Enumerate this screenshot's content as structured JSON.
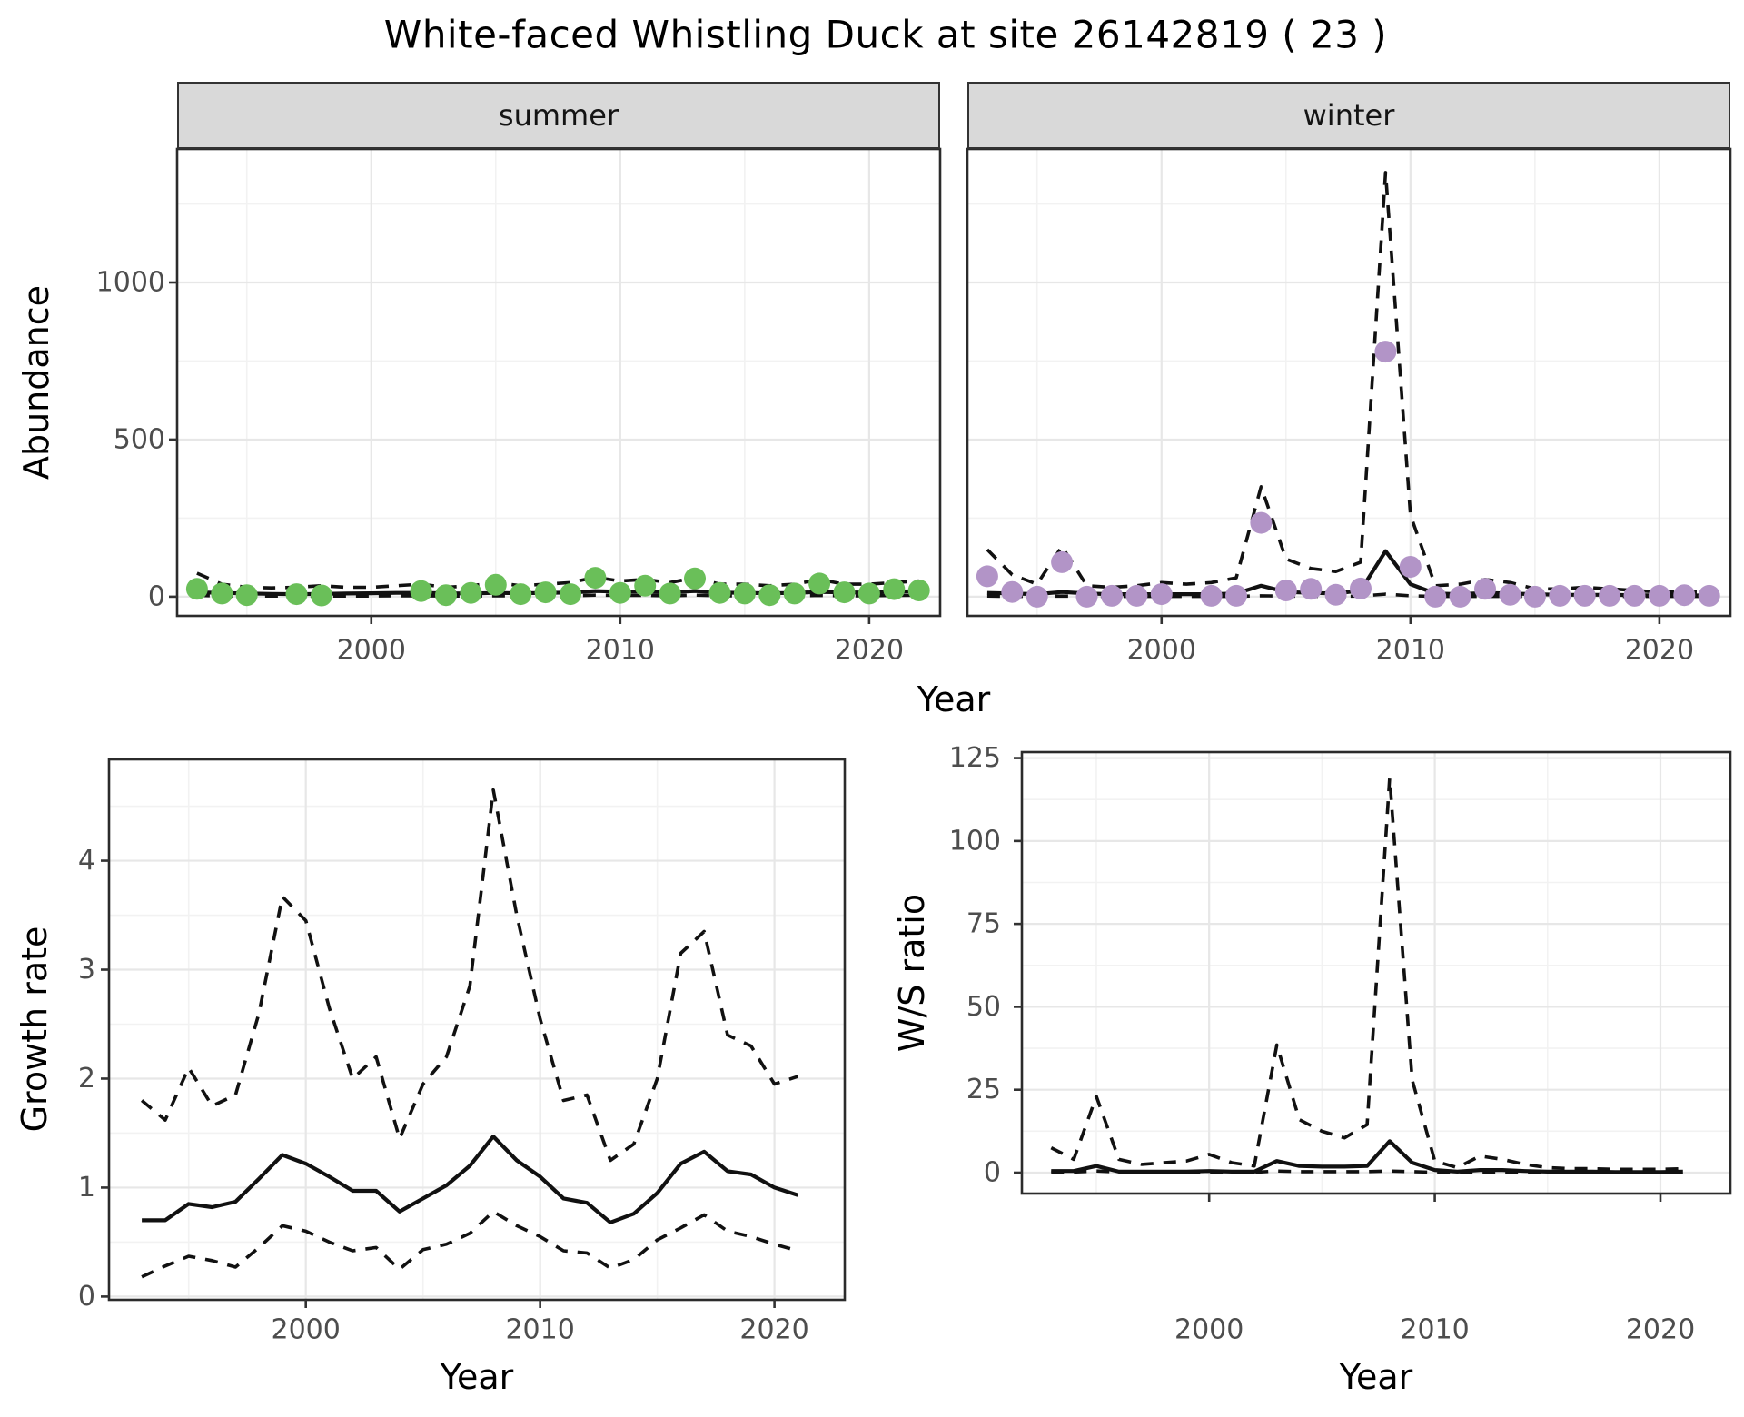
{
  "title": "White-faced Whistling Duck at site 26142819 ( 23 )",
  "axis_titles": {
    "abundance": "Abundance",
    "year_top": "Year",
    "growth_rate": "Growth rate",
    "year_bottom_left": "Year",
    "ws_ratio": "W/S ratio",
    "year_bottom_right": "Year"
  },
  "colors": {
    "summer_points": "#6ABF59",
    "winter_points": "#B294C7",
    "line": "#111111",
    "strip_fill": "#D9D9D9",
    "strip_border": "#333333",
    "panel_border": "#2B2B2B",
    "grid_major": "#E7E7E7",
    "grid_minor": "#F2F2F2",
    "tick_mark": "#333333",
    "tick_label": "#4D4D4D"
  },
  "chart_data": [
    {
      "id": "abundance-summer",
      "type": "scatter",
      "facet_label": "summer",
      "xlabel": "Year",
      "ylabel": "Abundance",
      "xlim": [
        1992.2,
        2022.85
      ],
      "ylim": [
        -61,
        1425
      ],
      "xticks": [
        2000,
        2010,
        2020
      ],
      "xticks_minor": [
        1995,
        2005,
        2015
      ],
      "yticks": [
        0,
        500,
        1000
      ],
      "yticks_minor": [
        250,
        750,
        1250
      ],
      "point_color": "#6ABF59",
      "points": {
        "years": [
          1993,
          1994,
          1995,
          1997,
          1998,
          2002,
          2003,
          2004,
          2005,
          2006,
          2007,
          2008,
          2009,
          2010,
          2011,
          2012,
          2013,
          2014,
          2015,
          2016,
          2017,
          2018,
          2019,
          2020,
          2021,
          2022
        ],
        "values": [
          25,
          10,
          5,
          8,
          4,
          18,
          5,
          12,
          38,
          8,
          14,
          8,
          60,
          12,
          35,
          10,
          58,
          12,
          10,
          5,
          10,
          42,
          14,
          10,
          24,
          20
        ]
      },
      "fit": {
        "years": [
          1993,
          1994,
          1995,
          1996,
          1997,
          1998,
          1999,
          2000,
          2001,
          2002,
          2003,
          2004,
          2005,
          2006,
          2007,
          2008,
          2009,
          2010,
          2011,
          2012,
          2013,
          2014,
          2015,
          2016,
          2017,
          2018,
          2019,
          2020,
          2021,
          2022
        ],
        "values": [
          14,
          12,
          10,
          9,
          8,
          9,
          10,
          11,
          12,
          12,
          11,
          10,
          12,
          11,
          12,
          13,
          18,
          16,
          16,
          14,
          18,
          13,
          12,
          11,
          12,
          15,
          14,
          13,
          16,
          18
        ]
      },
      "upper": {
        "years": [
          1993,
          1994,
          1995,
          1996,
          1997,
          1998,
          1999,
          2000,
          2001,
          2002,
          2003,
          2004,
          2005,
          2006,
          2007,
          2008,
          2009,
          2010,
          2011,
          2012,
          2013,
          2014,
          2015,
          2016,
          2017,
          2018,
          2019,
          2020,
          2021,
          2022
        ],
        "values": [
          75,
          40,
          30,
          28,
          30,
          35,
          30,
          30,
          35,
          40,
          30,
          35,
          45,
          35,
          40,
          45,
          62,
          50,
          55,
          45,
          60,
          40,
          40,
          35,
          40,
          55,
          40,
          40,
          45,
          50
        ]
      },
      "lower": {
        "years": [
          1993,
          1994,
          1995,
          1996,
          1997,
          1998,
          1999,
          2000,
          2001,
          2002,
          2003,
          2004,
          2005,
          2006,
          2007,
          2008,
          2009,
          2010,
          2011,
          2012,
          2013,
          2014,
          2015,
          2016,
          2017,
          2018,
          2019,
          2020,
          2021,
          2022
        ],
        "values": [
          4,
          2,
          2,
          2,
          2,
          2,
          2,
          2,
          3,
          3,
          2,
          2,
          3,
          3,
          3,
          3,
          5,
          4,
          4,
          3,
          5,
          3,
          3,
          2,
          3,
          4,
          3,
          3,
          4,
          5
        ]
      }
    },
    {
      "id": "abundance-winter",
      "type": "scatter",
      "facet_label": "winter",
      "xlabel": "Year",
      "ylabel": "Abundance",
      "xlim": [
        1992.2,
        2022.85
      ],
      "ylim": [
        -61,
        1425
      ],
      "xticks": [
        2000,
        2010,
        2020
      ],
      "xticks_minor": [
        1995,
        2005,
        2015
      ],
      "yticks": [
        0,
        500,
        1000
      ],
      "yticks_minor": [
        250,
        750,
        1250
      ],
      "point_color": "#B294C7",
      "points": {
        "years": [
          1993,
          1994,
          1995,
          1996,
          1997,
          1998,
          1999,
          2000,
          2002,
          2003,
          2004,
          2005,
          2006,
          2007,
          2008,
          2009,
          2010,
          2011,
          2012,
          2013,
          2014,
          2015,
          2016,
          2017,
          2018,
          2019,
          2020,
          2021,
          2022
        ],
        "values": [
          65,
          15,
          0,
          110,
          0,
          3,
          3,
          8,
          3,
          3,
          235,
          20,
          25,
          6,
          26,
          780,
          95,
          0,
          0,
          25,
          6,
          0,
          3,
          3,
          3,
          3,
          3,
          5,
          3
        ]
      },
      "fit": {
        "years": [
          1993,
          1994,
          1995,
          1996,
          1997,
          1998,
          1999,
          2000,
          2001,
          2002,
          2003,
          2004,
          2005,
          2006,
          2007,
          2008,
          2009,
          2010,
          2011,
          2012,
          2013,
          2014,
          2015,
          2016,
          2017,
          2018,
          2019,
          2020,
          2021,
          2022
        ],
        "values": [
          12,
          10,
          8,
          15,
          10,
          8,
          8,
          8,
          8,
          8,
          10,
          35,
          15,
          12,
          10,
          20,
          145,
          40,
          10,
          8,
          12,
          10,
          8,
          6,
          6,
          6,
          5,
          4,
          4,
          4
        ]
      },
      "upper": {
        "years": [
          1993,
          1994,
          1995,
          1996,
          1997,
          1998,
          1999,
          2000,
          2001,
          2002,
          2003,
          2004,
          2005,
          2006,
          2007,
          2008,
          2009,
          2010,
          2011,
          2012,
          2013,
          2014,
          2015,
          2016,
          2017,
          2018,
          2019,
          2020,
          2021,
          2022
        ],
        "values": [
          150,
          70,
          40,
          160,
          35,
          30,
          35,
          45,
          40,
          45,
          60,
          350,
          120,
          90,
          80,
          110,
          1350,
          260,
          35,
          40,
          55,
          45,
          25,
          25,
          30,
          25,
          20,
          15,
          15,
          15
        ]
      },
      "lower": {
        "years": [
          1993,
          1994,
          1995,
          1996,
          1997,
          1998,
          1999,
          2000,
          2001,
          2002,
          2003,
          2004,
          2005,
          2006,
          2007,
          2008,
          2009,
          2010,
          2011,
          2012,
          2013,
          2014,
          2015,
          2016,
          2017,
          2018,
          2019,
          2020,
          2021,
          2022
        ],
        "values": [
          2,
          1,
          1,
          2,
          1,
          1,
          1,
          1,
          1,
          1,
          1,
          3,
          2,
          1,
          1,
          2,
          8,
          3,
          1,
          1,
          1,
          1,
          1,
          1,
          1,
          1,
          1,
          1,
          1,
          1
        ]
      }
    },
    {
      "id": "growth-rate",
      "type": "line",
      "facet_label": "",
      "xlabel": "Year",
      "ylabel": "Growth rate",
      "xlim": [
        1991.6,
        2023.0
      ],
      "ylim": [
        -0.03,
        4.93
      ],
      "xticks": [
        2000,
        2010,
        2020
      ],
      "xticks_minor": [
        1995,
        2005,
        2015
      ],
      "yticks": [
        0,
        1,
        2,
        3,
        4
      ],
      "yticks_minor": [
        0.5,
        1.5,
        2.5,
        3.5,
        4.5
      ],
      "point_color": null,
      "points": {
        "years": [],
        "values": []
      },
      "fit": {
        "years": [
          1993,
          1994,
          1995,
          1996,
          1997,
          1998,
          1999,
          2000,
          2001,
          2002,
          2003,
          2004,
          2005,
          2006,
          2007,
          2008,
          2009,
          2010,
          2011,
          2012,
          2013,
          2014,
          2015,
          2016,
          2017,
          2018,
          2019,
          2020,
          2021
        ],
        "values": [
          0.7,
          0.7,
          0.85,
          0.82,
          0.87,
          1.08,
          1.3,
          1.22,
          1.1,
          0.97,
          0.97,
          0.78,
          0.9,
          1.02,
          1.2,
          1.47,
          1.25,
          1.1,
          0.9,
          0.86,
          0.68,
          0.76,
          0.95,
          1.22,
          1.33,
          1.15,
          1.12,
          1.0,
          0.93
        ]
      },
      "upper": {
        "years": [
          1993,
          1994,
          1995,
          1996,
          1997,
          1998,
          1999,
          2000,
          2001,
          2002,
          2003,
          2004,
          2005,
          2006,
          2007,
          2008,
          2009,
          2010,
          2011,
          2012,
          2013,
          2014,
          2015,
          2016,
          2017,
          2018,
          2019,
          2020,
          2021
        ],
        "values": [
          1.8,
          1.62,
          2.1,
          1.75,
          1.85,
          2.6,
          3.67,
          3.45,
          2.65,
          2.0,
          2.2,
          1.45,
          1.95,
          2.2,
          2.85,
          4.65,
          3.5,
          2.55,
          1.8,
          1.85,
          1.25,
          1.4,
          2.0,
          3.15,
          3.35,
          2.4,
          2.3,
          1.95,
          2.02
        ]
      },
      "lower": {
        "years": [
          1993,
          1994,
          1995,
          1996,
          1997,
          1998,
          1999,
          2000,
          2001,
          2002,
          2003,
          2004,
          2005,
          2006,
          2007,
          2008,
          2009,
          2010,
          2011,
          2012,
          2013,
          2014,
          2015,
          2016,
          2017,
          2018,
          2019,
          2020,
          2021
        ],
        "values": [
          0.18,
          0.28,
          0.37,
          0.33,
          0.27,
          0.45,
          0.65,
          0.6,
          0.5,
          0.42,
          0.45,
          0.25,
          0.43,
          0.48,
          0.58,
          0.78,
          0.65,
          0.55,
          0.42,
          0.4,
          0.26,
          0.34,
          0.52,
          0.63,
          0.75,
          0.6,
          0.55,
          0.48,
          0.42
        ]
      }
    },
    {
      "id": "ws-ratio",
      "type": "line",
      "facet_label": "",
      "xlabel": "Year",
      "ylabel": "W/S ratio",
      "xlim": [
        1991.7,
        2023.1
      ],
      "ylim": [
        -6.3,
        126.8
      ],
      "xticks": [
        2000,
        2010,
        2020
      ],
      "xticks_minor": [
        1995,
        2005,
        2015
      ],
      "yticks": [
        0,
        25,
        50,
        75,
        100,
        125
      ],
      "yticks_minor": [
        12.5,
        37.5,
        62.5,
        87.5,
        112.5
      ],
      "point_color": null,
      "points": {
        "years": [],
        "values": []
      },
      "fit": {
        "years": [
          1993,
          1994,
          1995,
          1996,
          1997,
          1998,
          1999,
          2000,
          2001,
          2002,
          2003,
          2004,
          2005,
          2006,
          2007,
          2008,
          2009,
          2010,
          2011,
          2012,
          2013,
          2014,
          2015,
          2016,
          2017,
          2018,
          2019,
          2020,
          2021
        ],
        "values": [
          0.5,
          0.5,
          2.0,
          0.3,
          0.3,
          0.3,
          0.3,
          0.5,
          0.3,
          0.3,
          3.5,
          2.0,
          1.8,
          1.8,
          2.0,
          9.5,
          3.0,
          0.8,
          0.3,
          0.8,
          0.8,
          0.5,
          0.3,
          0.3,
          0.3,
          0.2,
          0.2,
          0.2,
          0.3
        ]
      },
      "upper": {
        "years": [
          1993,
          1994,
          1995,
          1996,
          1997,
          1998,
          1999,
          2000,
          2001,
          2002,
          2003,
          2004,
          2005,
          2006,
          2007,
          2008,
          2009,
          2010,
          2011,
          2012,
          2013,
          2014,
          2015,
          2016,
          2017,
          2018,
          2019,
          2020,
          2021
        ],
        "values": [
          7.5,
          4.0,
          23.0,
          4.0,
          2.5,
          3.0,
          3.5,
          5.5,
          3.0,
          2.0,
          38.5,
          16.0,
          12.5,
          10.5,
          14.5,
          119.0,
          28.0,
          3.5,
          1.5,
          5.0,
          4.0,
          2.5,
          1.5,
          1.2,
          1.2,
          1.0,
          1.0,
          1.0,
          1.2
        ]
      },
      "lower": {
        "years": [
          1993,
          1994,
          1995,
          1996,
          1997,
          1998,
          1999,
          2000,
          2001,
          2002,
          2003,
          2004,
          2005,
          2006,
          2007,
          2008,
          2009,
          2010,
          2011,
          2012,
          2013,
          2014,
          2015,
          2016,
          2017,
          2018,
          2019,
          2020,
          2021
        ],
        "values": [
          0.2,
          0.2,
          0.5,
          0.2,
          0.1,
          0.1,
          0.1,
          0.2,
          0.1,
          0.1,
          0.5,
          0.3,
          0.3,
          0.3,
          0.3,
          0.5,
          0.3,
          0.1,
          0.1,
          0.1,
          0.1,
          0.1,
          0.1,
          0.1,
          0.1,
          0.1,
          0.1,
          0.1,
          0.1
        ]
      }
    }
  ]
}
